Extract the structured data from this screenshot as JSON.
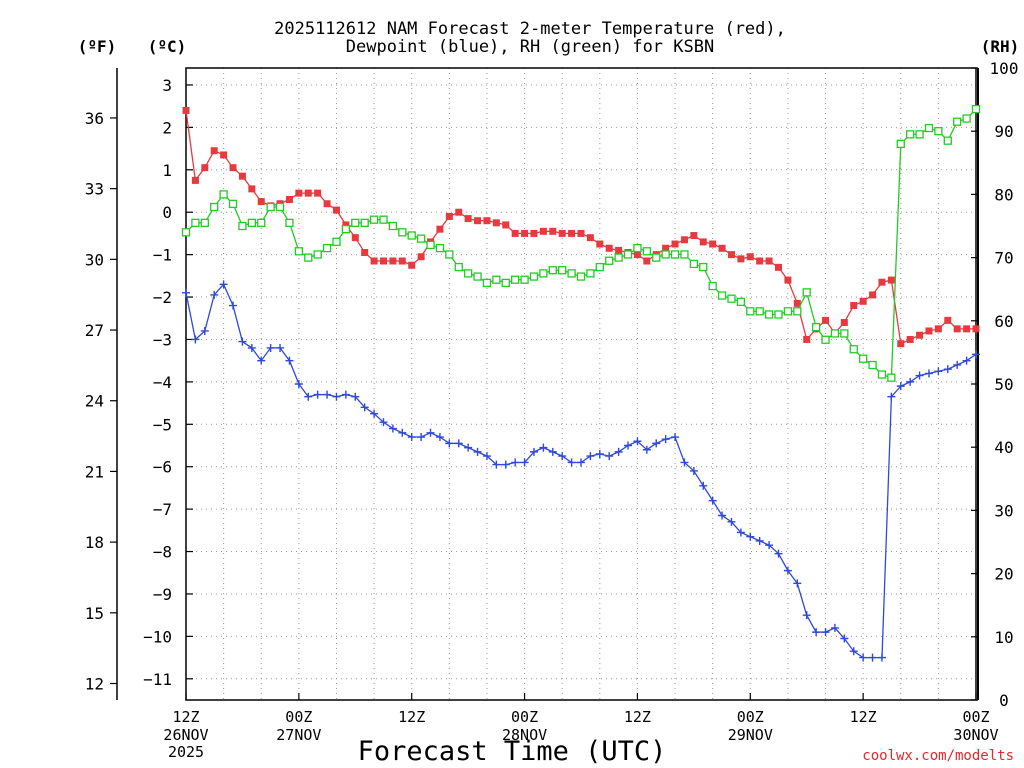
{
  "chart_data": {
    "type": "line",
    "title_line1": "2025112612 NAM Forecast 2-meter Temperature (red),",
    "title_line2": "Dewpoint (blue), RH (green) for KSBN",
    "xlabel": "Forecast Time (UTC)",
    "credit": "coolwx.com/modelts",
    "units": {
      "fahrenheit": "(ºF)",
      "celsius": "(ºC)",
      "rh": "(RH)"
    },
    "x_range_hours": [
      0,
      84
    ],
    "celsius_range": [
      -11.5,
      3.4
    ],
    "rh_range": [
      0,
      100
    ],
    "celsius_ticks": [
      "3",
      "2",
      "1",
      "0",
      "−1",
      "−2",
      "−3",
      "−4",
      "−5",
      "−6",
      "−7",
      "−8",
      "−9",
      "−10",
      "−11"
    ],
    "fahrenheit_ticks": [
      "36",
      "33",
      "30",
      "27",
      "24",
      "21",
      "18",
      "15",
      "12"
    ],
    "rh_ticks": [
      "100",
      "90",
      "80",
      "70",
      "60",
      "50",
      "40",
      "30",
      "20",
      "10",
      "0"
    ],
    "x_ticks": [
      {
        "time": "12Z",
        "date": "26NOV",
        "year": "2025"
      },
      {
        "time": "00Z",
        "date": "27NOV"
      },
      {
        "time": "12Z",
        "date": ""
      },
      {
        "time": "00Z",
        "date": "28NOV"
      },
      {
        "time": "12Z",
        "date": ""
      },
      {
        "time": "00Z",
        "date": "29NOV"
      },
      {
        "time": "12Z",
        "date": ""
      },
      {
        "time": "00Z",
        "date": "30NOV"
      }
    ],
    "series": [
      {
        "name": "Temperature (°C)",
        "color": "#e8393f",
        "marker": "filled-square",
        "axis": "celsius",
        "x": [
          0,
          1,
          2,
          3,
          4,
          5,
          6,
          7,
          8,
          9,
          10,
          11,
          12,
          13,
          14,
          15,
          16,
          17,
          18,
          19,
          20,
          21,
          22,
          23,
          24,
          25,
          26,
          27,
          28,
          29,
          30,
          31,
          32,
          33,
          34,
          35,
          36,
          37,
          38,
          39,
          40,
          41,
          42,
          43,
          44,
          45,
          46,
          47,
          48,
          49,
          50,
          51,
          52,
          53,
          54,
          55,
          56,
          57,
          58,
          59,
          60,
          61,
          62,
          63,
          64,
          65,
          66,
          67,
          68,
          69,
          70,
          71,
          72,
          73,
          74,
          75,
          76,
          77,
          78,
          79,
          80,
          81,
          82,
          83,
          84
        ],
        "values": [
          2.4,
          0.75,
          1.05,
          1.45,
          1.35,
          1.05,
          0.85,
          0.55,
          0.25,
          0.15,
          0.2,
          0.3,
          0.45,
          0.45,
          0.45,
          0.2,
          0.05,
          -0.3,
          -0.6,
          -0.95,
          -1.15,
          -1.15,
          -1.15,
          -1.15,
          -1.25,
          -1.05,
          -0.7,
          -0.4,
          -0.1,
          0.0,
          -0.15,
          -0.2,
          -0.2,
          -0.25,
          -0.3,
          -0.5,
          -0.5,
          -0.5,
          -0.45,
          -0.45,
          -0.5,
          -0.5,
          -0.5,
          -0.6,
          -0.75,
          -0.85,
          -0.9,
          -0.95,
          -1.0,
          -1.15,
          -1.0,
          -0.85,
          -0.75,
          -0.65,
          -0.55,
          -0.7,
          -0.75,
          -0.85,
          -1.0,
          -1.1,
          -1.05,
          -1.15,
          -1.15,
          -1.3,
          -1.6,
          -2.15,
          -3.0,
          -2.75,
          -2.55,
          -2.85,
          -2.6,
          -2.2,
          -2.1,
          -1.95,
          -1.65,
          -1.6,
          -3.1,
          -3.0,
          -2.9,
          -2.8,
          -2.75,
          -2.55,
          -2.75,
          -2.75,
          -2.75
        ]
      },
      {
        "name": "Dewpoint (°C)",
        "color": "#2f48dc",
        "marker": "plus",
        "axis": "celsius",
        "x": [
          0,
          1,
          2,
          3,
          4,
          5,
          6,
          7,
          8,
          9,
          10,
          11,
          12,
          13,
          14,
          15,
          16,
          17,
          18,
          19,
          20,
          21,
          22,
          23,
          24,
          25,
          26,
          27,
          28,
          29,
          30,
          31,
          32,
          33,
          34,
          35,
          36,
          37,
          38,
          39,
          40,
          41,
          42,
          43,
          44,
          45,
          46,
          47,
          48,
          49,
          50,
          51,
          52,
          53,
          54,
          55,
          56,
          57,
          58,
          59,
          60,
          61,
          62,
          63,
          64,
          65,
          66,
          67,
          68,
          69,
          70,
          71,
          72,
          73,
          74,
          75,
          76,
          77,
          78,
          79,
          80,
          81,
          82,
          83,
          84
        ],
        "values": [
          -1.9,
          -3.0,
          -2.8,
          -1.95,
          -1.7,
          -2.2,
          -3.05,
          -3.2,
          -3.5,
          -3.2,
          -3.2,
          -3.5,
          -4.05,
          -4.35,
          -4.3,
          -4.3,
          -4.35,
          -4.3,
          -4.35,
          -4.6,
          -4.75,
          -4.95,
          -5.1,
          -5.2,
          -5.3,
          -5.3,
          -5.2,
          -5.3,
          -5.45,
          -5.45,
          -5.55,
          -5.65,
          -5.75,
          -5.95,
          -5.95,
          -5.9,
          -5.9,
          -5.65,
          -5.55,
          -5.65,
          -5.75,
          -5.9,
          -5.9,
          -5.75,
          -5.7,
          -5.75,
          -5.65,
          -5.5,
          -5.4,
          -5.6,
          -5.45,
          -5.35,
          -5.3,
          -5.9,
          -6.1,
          -6.45,
          -6.8,
          -7.15,
          -7.3,
          -7.55,
          -7.65,
          -7.75,
          -7.85,
          -8.05,
          -8.45,
          -8.75,
          -9.5,
          -9.9,
          -9.9,
          -9.8,
          -10.05,
          -10.35,
          -10.5,
          -10.5,
          -10.5,
          -4.35,
          -4.1,
          -4.0,
          -3.85,
          -3.8,
          -3.75,
          -3.7,
          -3.6,
          -3.5,
          -3.35
        ]
      },
      {
        "name": "RH (%)",
        "color": "#22cc22",
        "marker": "open-square",
        "axis": "rh",
        "x": [
          0,
          1,
          2,
          3,
          4,
          5,
          6,
          7,
          8,
          9,
          10,
          11,
          12,
          13,
          14,
          15,
          16,
          17,
          18,
          19,
          20,
          21,
          22,
          23,
          24,
          25,
          26,
          27,
          28,
          29,
          30,
          31,
          32,
          33,
          34,
          35,
          36,
          37,
          38,
          39,
          40,
          41,
          42,
          43,
          44,
          45,
          46,
          47,
          48,
          49,
          50,
          51,
          52,
          53,
          54,
          55,
          56,
          57,
          58,
          59,
          60,
          61,
          62,
          63,
          64,
          65,
          66,
          67,
          68,
          69,
          70,
          71,
          72,
          73,
          74,
          75,
          76,
          77,
          78,
          79,
          80,
          81,
          82,
          83,
          84
        ],
        "values": [
          74,
          75.5,
          75.5,
          78,
          80,
          78.5,
          75,
          75.5,
          75.5,
          78,
          78,
          75.5,
          71,
          70,
          70.5,
          71.5,
          72.5,
          74.5,
          75.5,
          75.5,
          76,
          76,
          75,
          74,
          73.5,
          73,
          72,
          71.5,
          70.5,
          68.5,
          67.5,
          67,
          66,
          66.5,
          66,
          66.5,
          66.5,
          67,
          67.5,
          68,
          68,
          67.5,
          67,
          67.5,
          68.5,
          69.5,
          70,
          70.5,
          71.5,
          71,
          70,
          70.5,
          70.5,
          70.5,
          69,
          68.5,
          65.5,
          64,
          63.5,
          63,
          61.5,
          61.5,
          61,
          61,
          61.5,
          61.5,
          64.5,
          59,
          57,
          58,
          58,
          55.5,
          54,
          53,
          51.5,
          51,
          88,
          89.5,
          89.5,
          90.5,
          90,
          88.5,
          91.5,
          92,
          93.5
        ]
      }
    ]
  }
}
